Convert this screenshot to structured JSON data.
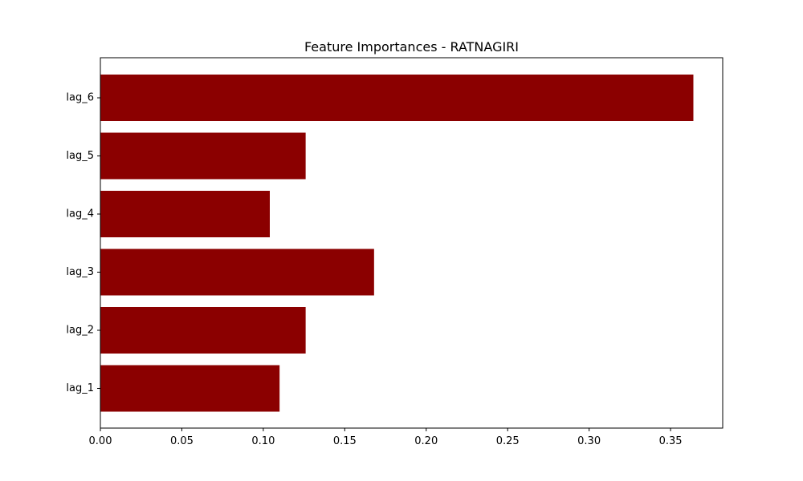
{
  "chart_data": {
    "type": "bar",
    "orientation": "horizontal",
    "title": "Feature Importances - RATNAGIRI",
    "xlabel": "",
    "ylabel": "",
    "categories": [
      "lag_1",
      "lag_2",
      "lag_3",
      "lag_4",
      "lag_5",
      "lag_6"
    ],
    "values": [
      0.11,
      0.126,
      0.168,
      0.104,
      0.126,
      0.364
    ],
    "xlim": [
      0,
      0.382
    ],
    "xticks": [
      0.0,
      0.05,
      0.1,
      0.15,
      0.2,
      0.25,
      0.3,
      0.35
    ],
    "xtick_labels": [
      "0.00",
      "0.05",
      "0.10",
      "0.15",
      "0.20",
      "0.25",
      "0.30",
      "0.35"
    ],
    "bar_color": "#8b0000",
    "grid": false,
    "legend": "none"
  }
}
